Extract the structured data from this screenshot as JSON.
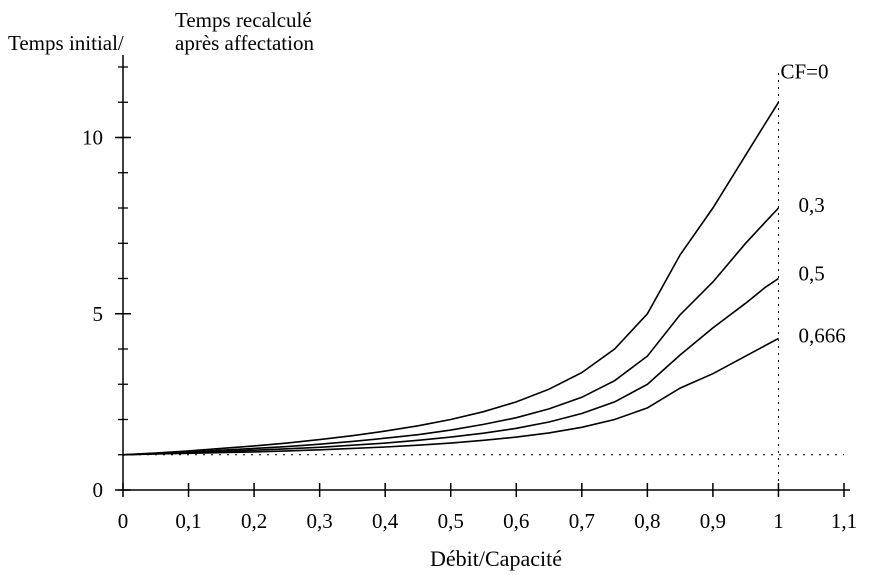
{
  "chart_data": {
    "type": "line",
    "title": "",
    "ylabel_line1": "Temps recalculé",
    "ylabel_line2": "après affectation",
    "ylabel_prefix": "Temps initial/",
    "xlabel": "Débit/Capacité",
    "xlim": [
      0,
      1.1
    ],
    "ylim": [
      0,
      12
    ],
    "x_ticks": [
      0,
      0.1,
      0.2,
      0.3,
      0.4,
      0.5,
      0.6,
      0.7,
      0.8,
      0.9,
      1,
      1.1
    ],
    "x_tick_labels": [
      "0",
      "0,1",
      "0,2",
      "0,3",
      "0,4",
      "0,5",
      "0,6",
      "0,7",
      "0,8",
      "0,9",
      "1",
      "1,1"
    ],
    "y_ticks": [
      0,
      5,
      10
    ],
    "y_tick_labels": [
      "0",
      "5",
      "10"
    ],
    "y_minor_step": 1,
    "reference_lines": [
      {
        "orientation": "horizontal",
        "value": 1,
        "style": "dotted",
        "to_x": 1.1
      },
      {
        "orientation": "vertical",
        "value": 1,
        "style": "dotted"
      }
    ],
    "x": [
      0,
      0.05,
      0.1,
      0.15,
      0.2,
      0.25,
      0.3,
      0.35,
      0.4,
      0.45,
      0.5,
      0.55,
      0.6,
      0.65,
      0.7,
      0.75,
      0.8,
      0.85,
      0.9,
      0.95,
      0.98,
      1.0
    ],
    "series": [
      {
        "name": "CF=0",
        "values": [
          1,
          1.05,
          1.11,
          1.18,
          1.25,
          1.33,
          1.43,
          1.54,
          1.67,
          1.82,
          2.0,
          2.22,
          2.5,
          2.86,
          3.33,
          4.0,
          5.0,
          6.67,
          8.0,
          9.5,
          10.4,
          11.0
        ]
      },
      {
        "name": "0,3",
        "values": [
          1,
          1.04,
          1.08,
          1.13,
          1.18,
          1.23,
          1.3,
          1.38,
          1.47,
          1.57,
          1.7,
          1.86,
          2.05,
          2.3,
          2.63,
          3.1,
          3.8,
          4.97,
          5.9,
          7.0,
          7.6,
          8.0
        ]
      },
      {
        "name": "0,5",
        "values": [
          1,
          1.03,
          1.06,
          1.09,
          1.13,
          1.17,
          1.21,
          1.27,
          1.33,
          1.41,
          1.5,
          1.61,
          1.75,
          1.93,
          2.17,
          2.5,
          3.0,
          3.83,
          4.6,
          5.3,
          5.75,
          6.0
        ]
      },
      {
        "name": "0,666",
        "values": [
          1,
          1.02,
          1.04,
          1.06,
          1.08,
          1.11,
          1.14,
          1.18,
          1.22,
          1.27,
          1.33,
          1.41,
          1.5,
          1.62,
          1.78,
          2.0,
          2.33,
          2.89,
          3.3,
          3.8,
          4.1,
          4.3
        ]
      }
    ]
  }
}
